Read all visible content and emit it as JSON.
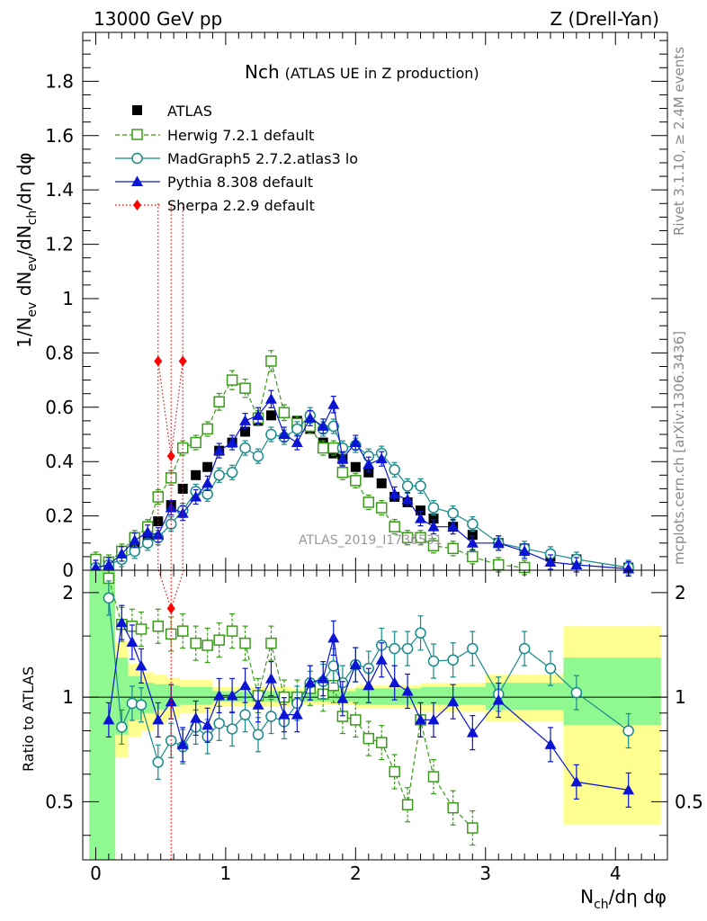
{
  "header": {
    "left": "13000 GeV pp",
    "right": "Z (Drell-Yan)"
  },
  "side_text": {
    "rivet": "Rivet 3.1.10, ≥ 2.4M events",
    "mcplots": "mcplots.cern.ch [arXiv:1306.3436]"
  },
  "watermark": "ATLAS_2019_I1736531",
  "colors": {
    "atlas": "#000000",
    "herwig": "#3a9a1a",
    "madgraph": "#178a8a",
    "pythia": "#0a14d2",
    "sherpa": "#ff0000",
    "band_inner": "#90f890",
    "band_outer": "#ffff90"
  },
  "chart_data": [
    {
      "type": "scatter",
      "panel": "main",
      "title_main": "Nch",
      "title_sub": "(ATLAS UE in Z production)",
      "ylabel_parts": [
        "1/N",
        "ev",
        " dN",
        "ev",
        "/dN",
        "ch",
        "/dη dφ"
      ],
      "xlim": [
        -0.1,
        4.4
      ],
      "ylim": [
        0,
        1.98
      ],
      "yticks": [
        0,
        0.2,
        0.4,
        0.6,
        0.8,
        1,
        1.2,
        1.4,
        1.6,
        1.8
      ],
      "ytick_labels": [
        "0",
        "0.2",
        "0.4",
        "0.6",
        "0.8",
        "1",
        "1.2",
        "1.4",
        "1.6",
        "1.8"
      ],
      "legend_position": "top-left",
      "series": [
        {
          "name": "ATLAS",
          "key": "atlas",
          "style": "filled-square",
          "x": [
            0.0,
            0.1,
            0.2,
            0.3,
            0.4,
            0.48,
            0.58,
            0.67,
            0.77,
            0.86,
            0.95,
            1.05,
            1.15,
            1.25,
            1.35,
            1.45,
            1.55,
            1.65,
            1.75,
            1.83,
            1.9,
            2.0,
            2.1,
            2.2,
            2.3,
            2.4,
            2.5,
            2.6,
            2.75,
            2.9,
            3.1,
            3.3,
            3.5,
            3.7,
            4.1
          ],
          "y": [
            0.01,
            0.02,
            0.05,
            0.08,
            0.12,
            0.18,
            0.24,
            0.3,
            0.35,
            0.38,
            0.44,
            0.47,
            0.51,
            0.55,
            0.57,
            0.58,
            0.55,
            0.52,
            0.47,
            0.43,
            0.41,
            0.38,
            0.36,
            0.32,
            0.27,
            0.25,
            0.22,
            0.19,
            0.16,
            0.13,
            0.1,
            0.08,
            0.05,
            0.04,
            0.01
          ]
        },
        {
          "name": "Herwig 7.2.1 default",
          "key": "herwig",
          "style": "open-square-dashed",
          "x": [
            0.0,
            0.1,
            0.2,
            0.3,
            0.4,
            0.48,
            0.58,
            0.67,
            0.77,
            0.86,
            0.95,
            1.05,
            1.15,
            1.25,
            1.35,
            1.45,
            1.55,
            1.65,
            1.75,
            1.83,
            1.9,
            2.0,
            2.1,
            2.2,
            2.3,
            2.4,
            2.5,
            2.6,
            2.75,
            2.9,
            3.1,
            3.3
          ],
          "y": [
            0.04,
            0.03,
            0.07,
            0.12,
            0.16,
            0.27,
            0.34,
            0.45,
            0.47,
            0.52,
            0.62,
            0.7,
            0.67,
            0.56,
            0.77,
            0.58,
            0.54,
            0.53,
            0.45,
            0.45,
            0.36,
            0.33,
            0.25,
            0.23,
            0.16,
            0.12,
            0.12,
            0.09,
            0.08,
            0.05,
            0.02,
            0.01
          ]
        },
        {
          "name": "MadGraph5 2.7.2.atlas3 lo",
          "key": "madgraph",
          "style": "open-circle-solid",
          "x": [
            0.0,
            0.1,
            0.2,
            0.3,
            0.4,
            0.48,
            0.58,
            0.67,
            0.77,
            0.86,
            0.95,
            1.05,
            1.15,
            1.25,
            1.35,
            1.45,
            1.55,
            1.65,
            1.75,
            1.83,
            1.9,
            2.0,
            2.1,
            2.2,
            2.3,
            2.4,
            2.5,
            2.6,
            2.75,
            2.9,
            3.1,
            3.3,
            3.5,
            3.7,
            4.1
          ],
          "y": [
            0.01,
            0.02,
            0.04,
            0.07,
            0.1,
            0.12,
            0.17,
            0.22,
            0.29,
            0.28,
            0.35,
            0.36,
            0.45,
            0.42,
            0.5,
            0.49,
            0.52,
            0.57,
            0.52,
            0.53,
            0.45,
            0.46,
            0.42,
            0.43,
            0.37,
            0.31,
            0.31,
            0.23,
            0.21,
            0.17,
            0.1,
            0.08,
            0.06,
            0.04,
            0.01
          ]
        },
        {
          "name": "Pythia 8.308 default",
          "key": "pythia",
          "style": "filled-triangle-solid",
          "x": [
            0.0,
            0.1,
            0.2,
            0.3,
            0.4,
            0.48,
            0.58,
            0.67,
            0.77,
            0.86,
            0.95,
            1.05,
            1.15,
            1.25,
            1.35,
            1.45,
            1.55,
            1.65,
            1.75,
            1.83,
            1.9,
            2.0,
            2.1,
            2.2,
            2.3,
            2.4,
            2.5,
            2.6,
            2.75,
            2.9,
            3.1,
            3.3,
            3.5,
            3.7,
            4.1
          ],
          "y": [
            0.01,
            0.02,
            0.06,
            0.11,
            0.14,
            0.13,
            0.23,
            0.21,
            0.27,
            0.32,
            0.44,
            0.47,
            0.55,
            0.57,
            0.63,
            0.5,
            0.47,
            0.56,
            0.53,
            0.61,
            0.41,
            0.47,
            0.39,
            0.41,
            0.28,
            0.26,
            0.19,
            0.16,
            0.16,
            0.1,
            0.1,
            0.07,
            0.03,
            0.02,
            0.005
          ]
        },
        {
          "name": "Sherpa 2.2.9 default",
          "key": "sherpa",
          "style": "filled-diamond-dotted",
          "x": [
            0.48,
            0.58,
            0.67
          ],
          "y": [
            0.77,
            0.42,
            0.77
          ]
        }
      ]
    },
    {
      "type": "line",
      "panel": "ratio",
      "ylabel": "Ratio to ATLAS",
      "xlabel": "N_ch/dη dφ",
      "xlabel_main": "N",
      "xlabel_sub": "ch",
      "xlabel_rest": "/dη dφ",
      "xlim": [
        -0.1,
        4.4
      ],
      "ylim": [
        0.34,
        2.32
      ],
      "xticks": [
        0,
        1,
        2,
        3,
        4
      ],
      "xtick_labels": [
        "0",
        "1",
        "2",
        "3",
        "4"
      ],
      "yticks": [
        0.5,
        1,
        2
      ],
      "ytick_labels": [
        "0.5",
        "1",
        "2"
      ],
      "reference_line": 1,
      "bands": {
        "x": [
          -0.05,
          0.05,
          0.15,
          0.25,
          0.35,
          0.45,
          0.55,
          0.65,
          0.9,
          1.5,
          2.0,
          2.5,
          3.0,
          3.6,
          4.35
        ],
        "inner_lo": [
          0.3,
          0.3,
          0.78,
          0.86,
          0.9,
          0.92,
          0.94,
          0.95,
          0.97,
          0.97,
          0.95,
          0.95,
          0.92,
          0.83,
          0.83
        ],
        "inner_hi": [
          2.35,
          2.35,
          1.3,
          1.15,
          1.1,
          1.09,
          1.08,
          1.07,
          1.04,
          1.04,
          1.06,
          1.07,
          1.1,
          1.3,
          1.3
        ],
        "outer_lo": [
          0.3,
          0.3,
          0.67,
          0.77,
          0.8,
          0.84,
          0.87,
          0.9,
          0.94,
          0.95,
          0.93,
          0.91,
          0.85,
          0.43,
          0.43
        ],
        "outer_hi": [
          2.35,
          2.35,
          1.45,
          1.25,
          1.18,
          1.16,
          1.14,
          1.12,
          1.07,
          1.06,
          1.08,
          1.1,
          1.16,
          1.6,
          1.6
        ]
      },
      "series": [
        {
          "name": "Herwig 7.2.1 default",
          "key": "herwig",
          "x": [
            0.1,
            0.2,
            0.28,
            0.35,
            0.48,
            0.58,
            0.67,
            0.77,
            0.86,
            0.95,
            1.05,
            1.15,
            1.25,
            1.35,
            1.45,
            1.55,
            1.65,
            1.75,
            1.83,
            1.9,
            2.0,
            2.1,
            2.2,
            2.3,
            2.4,
            2.5,
            2.6,
            2.75,
            2.9
          ],
          "y": [
            2.2,
            1.62,
            1.6,
            1.57,
            1.6,
            1.52,
            1.55,
            1.43,
            1.41,
            1.46,
            1.55,
            1.43,
            1.01,
            1.43,
            1.0,
            1.0,
            1.06,
            1.02,
            1.08,
            0.88,
            0.86,
            0.76,
            0.74,
            0.61,
            0.49,
            0.86,
            0.59,
            0.48,
            0.42
          ]
        },
        {
          "name": "MadGraph5 2.7.2.atlas3 lo",
          "key": "madgraph",
          "x": [
            0.1,
            0.2,
            0.28,
            0.35,
            0.48,
            0.58,
            0.67,
            0.77,
            0.86,
            0.95,
            1.05,
            1.15,
            1.25,
            1.35,
            1.45,
            1.55,
            1.65,
            1.75,
            1.83,
            1.9,
            2.0,
            2.1,
            2.2,
            2.3,
            2.4,
            2.5,
            2.6,
            2.75,
            2.9,
            3.1,
            3.3,
            3.5,
            3.7,
            4.1
          ],
          "y": [
            1.93,
            0.82,
            0.96,
            0.95,
            0.65,
            0.75,
            0.72,
            0.82,
            0.77,
            0.84,
            0.81,
            0.89,
            0.78,
            0.88,
            0.85,
            0.96,
            1.1,
            1.11,
            1.23,
            1.1,
            1.24,
            1.21,
            1.41,
            1.38,
            1.38,
            1.53,
            1.27,
            1.28,
            1.38,
            1.02,
            1.38,
            1.21,
            1.03,
            0.8
          ]
        },
        {
          "name": "Pythia 8.308 default",
          "key": "pythia",
          "x": [
            0.1,
            0.2,
            0.28,
            0.35,
            0.48,
            0.58,
            0.67,
            0.77,
            0.86,
            0.95,
            1.05,
            1.15,
            1.25,
            1.35,
            1.45,
            1.55,
            1.65,
            1.75,
            1.83,
            1.9,
            2.0,
            2.1,
            2.2,
            2.3,
            2.4,
            2.5,
            2.6,
            2.75,
            2.9,
            3.1,
            3.5,
            3.7,
            4.1
          ],
          "y": [
            0.86,
            1.64,
            1.44,
            1.23,
            0.86,
            0.97,
            0.73,
            0.87,
            0.83,
            1.01,
            1.01,
            1.08,
            0.95,
            1.13,
            0.89,
            0.89,
            1.1,
            1.13,
            1.48,
            0.99,
            1.24,
            1.08,
            1.28,
            1.1,
            1.04,
            0.86,
            0.86,
            0.97,
            0.79,
            0.98,
            0.73,
            0.57,
            0.54
          ]
        },
        {
          "name": "Sherpa 2.2.9 default",
          "key": "sherpa",
          "x": [
            0.58
          ],
          "y": [
            1.8
          ]
        }
      ]
    }
  ]
}
